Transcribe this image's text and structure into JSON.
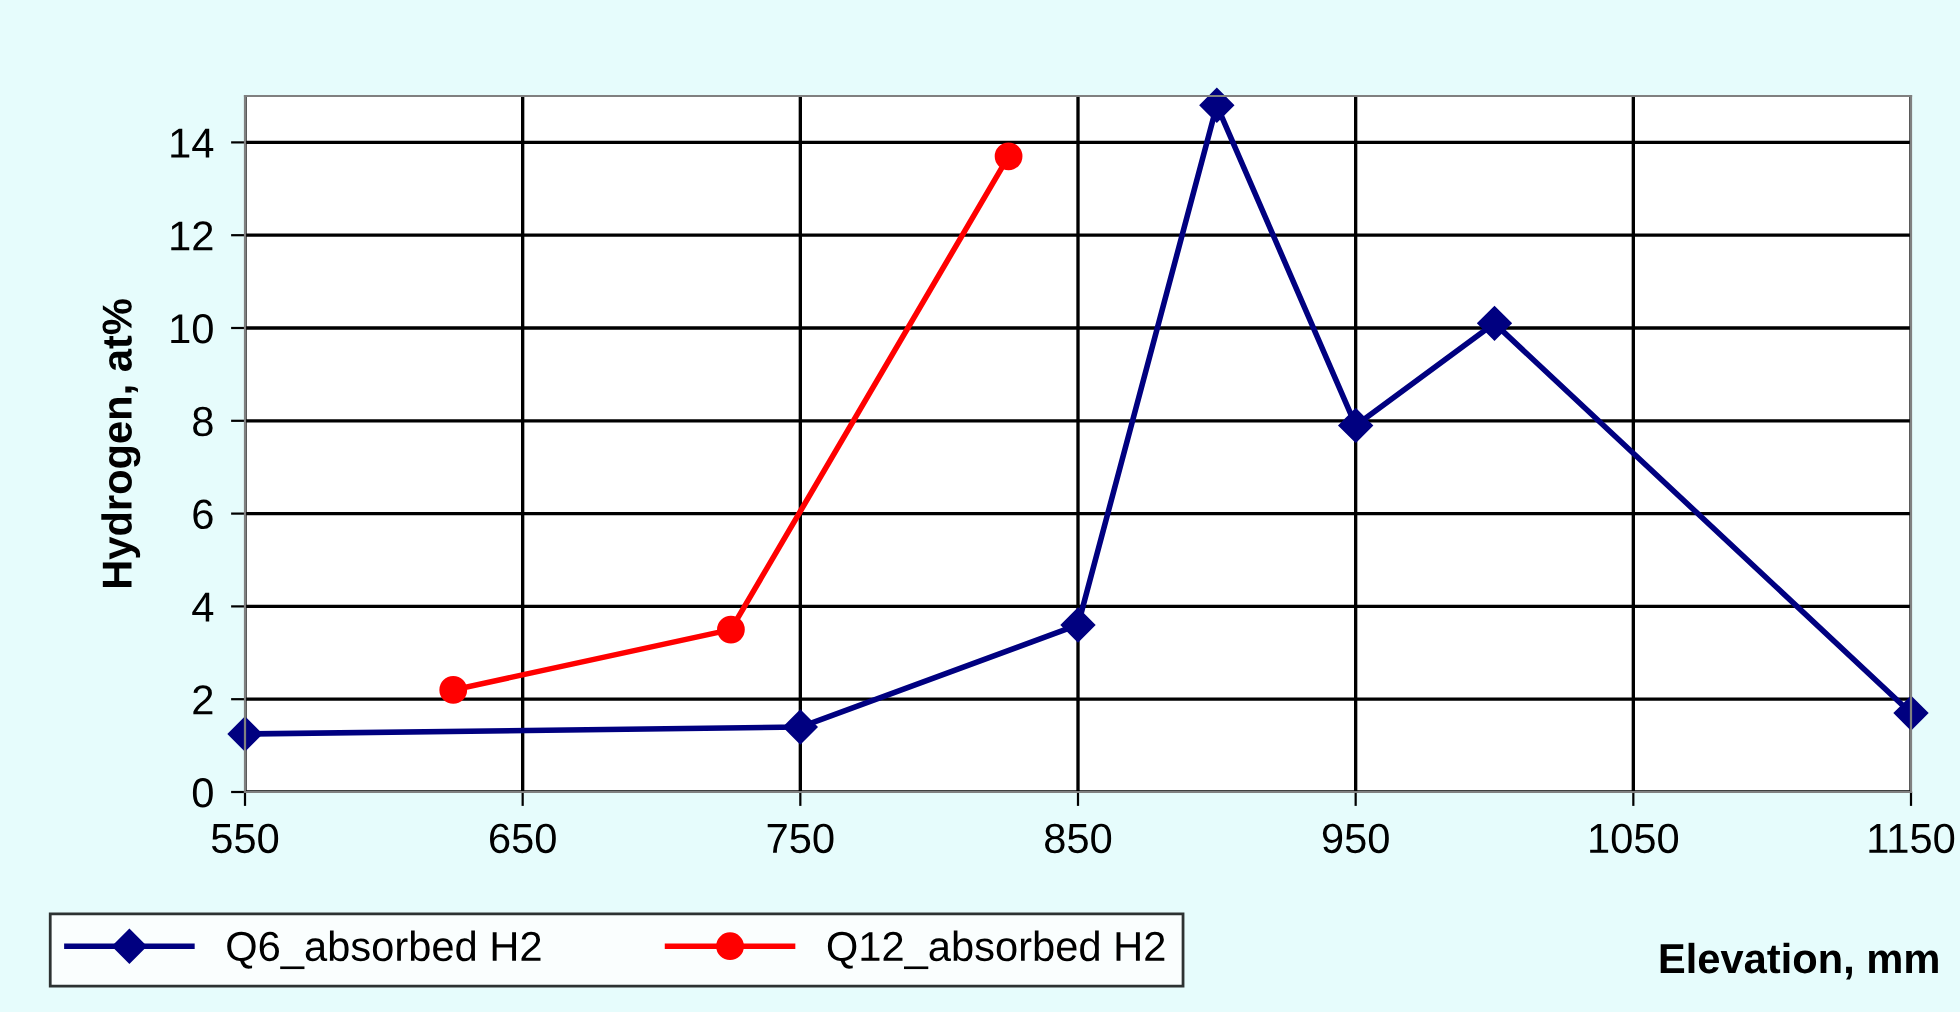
{
  "chart_data": {
    "type": "line",
    "xlabel": "Elevation, mm",
    "ylabel": "Hydrogen, at%",
    "xlim": [
      550,
      1150
    ],
    "xticks": [
      550,
      650,
      750,
      850,
      950,
      1050,
      1150
    ],
    "ylim": [
      0,
      15
    ],
    "yticks": [
      0,
      2,
      4,
      6,
      8,
      10,
      12,
      14
    ],
    "grid": true,
    "legend": "bottom left",
    "series": [
      {
        "name": "Q6_absorbed H2",
        "color": "#000080",
        "marker": "diamond",
        "x": [
          550,
          750,
          850,
          900,
          950,
          1000,
          1150
        ],
        "values": [
          1.25,
          1.4,
          3.6,
          14.8,
          7.9,
          10.1,
          1.7
        ]
      },
      {
        "name": "Q12_absorbed H2",
        "color": "#ff0000",
        "marker": "circle",
        "x": [
          625,
          725,
          825
        ],
        "values": [
          2.2,
          3.5,
          13.7
        ]
      }
    ]
  }
}
